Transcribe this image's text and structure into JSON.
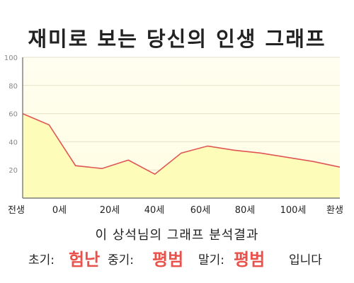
{
  "title": "재미로 보는 당신의 인생 그래프",
  "chart_data": {
    "type": "area",
    "x": [
      -10,
      0,
      10,
      20,
      30,
      40,
      50,
      60,
      70,
      80,
      90,
      100,
      110
    ],
    "values": [
      60,
      52,
      23,
      21,
      27,
      17,
      32,
      37,
      34,
      32,
      29,
      26,
      22
    ],
    "ylim": [
      0,
      100
    ],
    "yticks": [
      20,
      40,
      60,
      80,
      100
    ],
    "xtick_labels": [
      "전생",
      "0세",
      "20세",
      "40세",
      "60세",
      "80세",
      "100세",
      "환생"
    ],
    "fill_color": "#fdfcb8",
    "line_color": "#e05555",
    "grid": true
  },
  "analysis": "이  상석님의 그래프 분석결과",
  "verdict": {
    "early_label": "초기:",
    "early_value": "험난",
    "mid_label": "중기:",
    "mid_value": "평범",
    "late_label": "말기:",
    "late_value": "평범",
    "ending": "입니다"
  }
}
